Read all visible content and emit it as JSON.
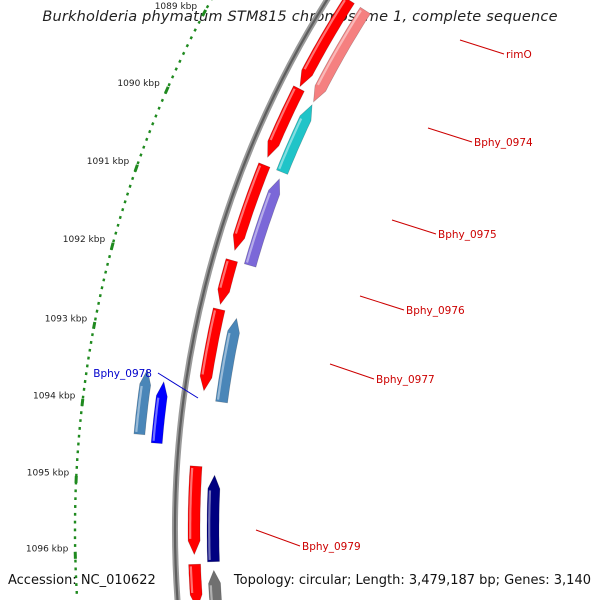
{
  "title": "Burkholderia phymatum STM815 chromosome 1, complete sequence",
  "footer": {
    "accession": "Accession: NC_010622",
    "stats": "Topology: circular; Length: 3,479,187 bp; Genes: 3,140"
  },
  "colors": {
    "backbone": "#808080",
    "tick": "#1f8a1f",
    "label_red": "#cc0000",
    "label_blue": "#0000cc",
    "forward": "#ff0000",
    "forward_light": "#f58080",
    "cyan": "#20c4c8",
    "lavender": "#7b68d8",
    "steel": "#4a86b8",
    "blue": "#0000ff",
    "navy": "#000080",
    "grey": "#707070"
  },
  "ruler": [
    {
      "label": "1089 kbp"
    },
    {
      "label": "1090 kbp"
    },
    {
      "label": "1091 kbp"
    },
    {
      "label": "1092 kbp"
    },
    {
      "label": "1093 kbp"
    },
    {
      "label": "1094 kbp"
    },
    {
      "label": "1095 kbp"
    },
    {
      "label": "1096 kbp"
    }
  ],
  "genes": [
    {
      "label": "rimO",
      "color_key": "label_red"
    },
    {
      "label": "Bphy_0974",
      "color_key": "label_red"
    },
    {
      "label": "Bphy_0975",
      "color_key": "label_red"
    },
    {
      "label": "Bphy_0976",
      "color_key": "label_red"
    },
    {
      "label": "Bphy_0977",
      "color_key": "label_red"
    },
    {
      "label": "Bphy_0978",
      "color_key": "label_blue"
    },
    {
      "label": "Bphy_0979",
      "color_key": "label_red"
    }
  ]
}
